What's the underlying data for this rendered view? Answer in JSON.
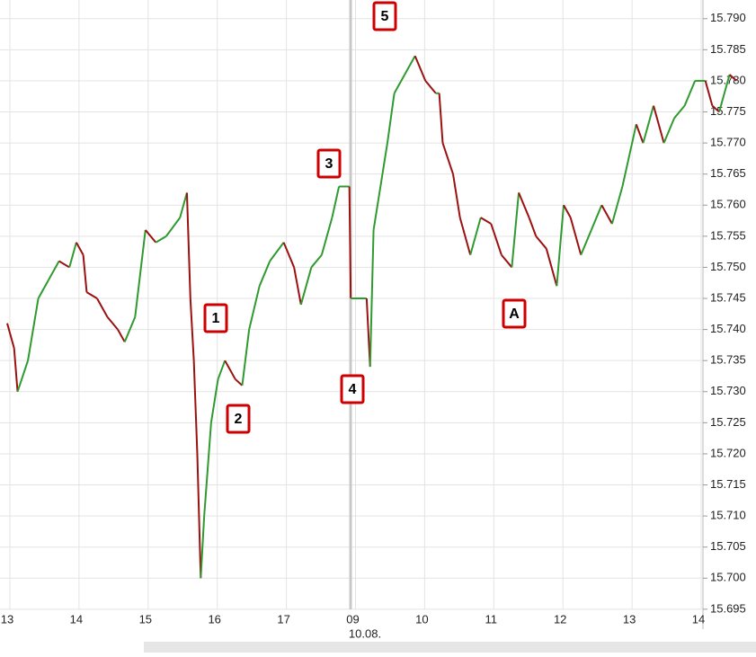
{
  "chart_data": {
    "type": "line",
    "x": [
      0,
      0.1,
      0.15,
      0.3,
      0.45,
      0.6,
      0.75,
      0.9,
      1.0,
      1.1,
      1.15,
      1.3,
      1.45,
      1.6,
      1.7,
      1.85,
      2.0,
      2.15,
      2.3,
      2.5,
      2.6,
      2.65,
      2.7,
      2.75,
      2.8,
      2.85,
      2.95,
      3.05,
      3.15,
      3.3,
      3.4,
      3.5,
      3.65,
      3.8,
      4.0,
      4.15,
      4.25,
      4.4,
      4.55,
      4.7,
      4.8,
      4.95,
      4.97,
      5.2,
      5.25,
      5.3,
      5.4,
      5.5,
      5.6,
      5.75,
      5.9,
      6.05,
      6.2,
      6.25,
      6.3,
      6.45,
      6.55,
      6.7,
      6.85,
      7.0,
      7.15,
      7.3,
      7.4,
      7.55,
      7.65,
      7.8,
      7.95,
      8.05,
      8.15,
      8.3,
      8.45,
      8.6,
      8.75,
      8.9,
      9.0,
      9.1,
      9.2,
      9.35,
      9.5,
      9.65,
      9.8,
      9.95,
      10.1,
      10.2,
      10.3,
      10.45,
      10.55
    ],
    "series": [
      {
        "values": [
          15.741,
          15.737,
          15.73,
          15.735,
          15.745,
          15.748,
          15.751,
          15.75,
          15.754,
          15.752,
          15.746,
          15.745,
          15.742,
          15.74,
          15.738,
          15.742,
          15.756,
          15.754,
          15.755,
          15.758,
          15.762,
          15.745,
          15.735,
          15.72,
          15.7,
          15.71,
          15.725,
          15.732,
          15.735,
          15.732,
          15.731,
          15.74,
          15.747,
          15.751,
          15.754,
          15.75,
          15.744,
          15.75,
          15.752,
          15.758,
          15.763,
          15.763,
          15.745,
          15.745,
          15.734,
          15.756,
          15.763,
          15.77,
          15.778,
          15.781,
          15.784,
          15.78,
          15.778,
          15.778,
          15.77,
          15.765,
          15.758,
          15.752,
          15.758,
          15.757,
          15.752,
          15.75,
          15.762,
          15.758,
          15.755,
          15.753,
          15.747,
          15.76,
          15.758,
          15.752,
          15.756,
          15.76,
          15.757,
          15.763,
          15.768,
          15.773,
          15.77,
          15.776,
          15.77,
          15.774,
          15.776,
          15.78,
          15.78,
          15.776,
          15.775,
          15.781,
          15.78
        ]
      }
    ],
    "up_color": "#2f9a2f",
    "down_color": "#9b1111",
    "xlim": [
      0,
      10
    ],
    "xticks": [
      {
        "value": 0,
        "label": "13"
      },
      {
        "value": 1,
        "label": "14"
      },
      {
        "value": 2,
        "label": "15"
      },
      {
        "value": 3,
        "label": "16"
      },
      {
        "value": 4,
        "label": "17"
      },
      {
        "value": 5,
        "label": "09"
      },
      {
        "value": 6,
        "label": "10"
      },
      {
        "value": 7,
        "label": "11"
      },
      {
        "value": 8,
        "label": "12"
      },
      {
        "value": 9,
        "label": "13"
      },
      {
        "value": 10,
        "label": "14"
      }
    ],
    "date_label": "10.08.",
    "ylim": [
      15.6918,
      15.793
    ],
    "yticks": [
      {
        "value": 15.695,
        "label": "15.695"
      },
      {
        "value": 15.7,
        "label": "15.700"
      },
      {
        "value": 15.705,
        "label": "15.705"
      },
      {
        "value": 15.71,
        "label": "15.710"
      },
      {
        "value": 15.715,
        "label": "15.715"
      },
      {
        "value": 15.72,
        "label": "15.720"
      },
      {
        "value": 15.725,
        "label": "15.725"
      },
      {
        "value": 15.73,
        "label": "15.730"
      },
      {
        "value": 15.735,
        "label": "15.735"
      },
      {
        "value": 15.74,
        "label": "15.740"
      },
      {
        "value": 15.745,
        "label": "15.745"
      },
      {
        "value": 15.75,
        "label": "15.750"
      },
      {
        "value": 15.755,
        "label": "15.755"
      },
      {
        "value": 15.76,
        "label": "15.760"
      },
      {
        "value": 15.765,
        "label": "15.765"
      },
      {
        "value": 15.77,
        "label": "15.770"
      },
      {
        "value": 15.775,
        "label": "15.775"
      },
      {
        "value": 15.78,
        "label": "15.780"
      },
      {
        "value": 15.785,
        "label": "15.785"
      },
      {
        "value": 15.79,
        "label": "15.790"
      }
    ],
    "grid": true,
    "annotations": [
      "1",
      "2",
      "3",
      "4",
      "5",
      "A"
    ]
  }
}
